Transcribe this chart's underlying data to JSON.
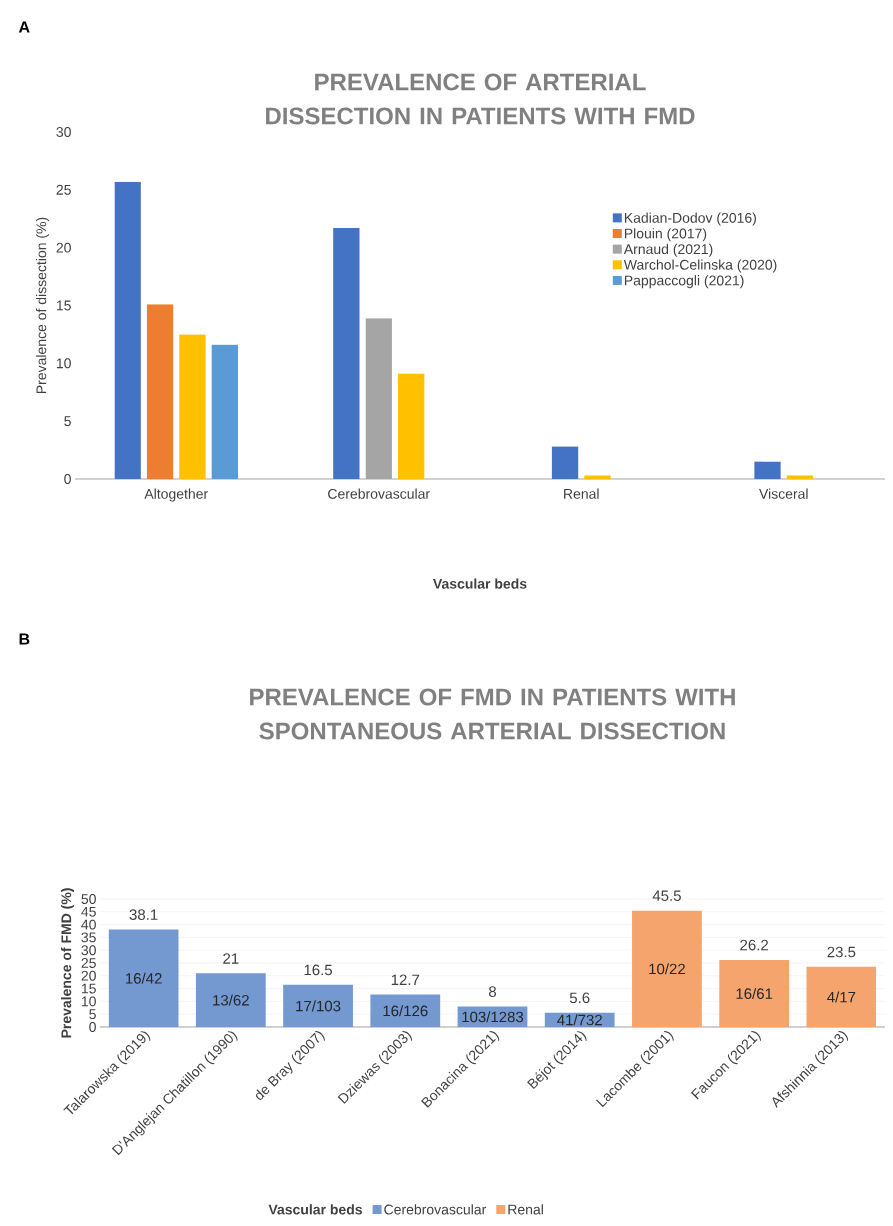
{
  "chart_data": [
    {
      "type": "bar",
      "title": "PREVALENCE OF ARTERIAL DISSECTION IN PATIENTS WITH FMD",
      "xlabel": "Vascular beds",
      "ylabel": "Prevalence of dissection (%)",
      "categories": [
        "Altogether",
        "Cerebrovascular",
        "Renal",
        "Visceral"
      ],
      "series": [
        {
          "name": "Kadian-Dodov (2016)",
          "color": "#4472c4",
          "values": [
            25.7,
            21.7,
            2.8,
            1.5
          ]
        },
        {
          "name": "Plouin (2017)",
          "color": "#ed7d31",
          "values": [
            15.1,
            null,
            null,
            null
          ]
        },
        {
          "name": "Arnaud (2021)",
          "color": "#a5a5a5",
          "values": [
            null,
            13.9,
            null,
            null
          ]
        },
        {
          "name": "Warchol-Celinska (2020)",
          "color": "#ffc000",
          "values": [
            12.5,
            9.1,
            0.3,
            0.3
          ]
        },
        {
          "name": "Pappaccogli (2021)",
          "color": "#5b9bd5",
          "values": [
            11.6,
            null,
            null,
            null
          ]
        }
      ],
      "ylim": [
        0,
        30
      ],
      "yticks": [
        0,
        5,
        10,
        15,
        20,
        25,
        30
      ],
      "legend": "top right",
      "annotations": [
        "A"
      ]
    },
    {
      "type": "bar",
      "title": "PREVALENCE OF FMD IN PATIENTS WITH SPONTANEOUS ARTERIAL DISSECTION",
      "ylabel": "Prevalence of FMD (%)",
      "legend_title": "Vascular beds",
      "categories": [
        "Talarowska (2019)",
        "D'Anglejan Chatillon (1990)",
        "de Bray (2007)",
        "Dziewas (2003)",
        "Bonacina (2021)",
        "Béjot (2014)",
        "Lacombe (2001)",
        "Faucon (2021)",
        "Afshinnia (2013)"
      ],
      "series": [
        {
          "name": "Cerebrovascular",
          "color": "#7399d0",
          "values": [
            38.1,
            21,
            16.5,
            12.7,
            8,
            5.6,
            null,
            null,
            null
          ]
        },
        {
          "name": "Renal",
          "color": "#f4a46c",
          "values": [
            null,
            null,
            null,
            null,
            null,
            null,
            45.5,
            26.2,
            23.5
          ]
        }
      ],
      "ylim": [
        0,
        50
      ],
      "yticks": [
        0,
        5,
        10,
        15,
        20,
        25,
        30,
        35,
        40,
        45,
        50
      ],
      "grid": "y",
      "legend": "bottom",
      "data_labels": true,
      "annotations": [
        "B",
        "16/42",
        "13/62",
        "17/103",
        "16/126",
        "103/1283",
        "41/732",
        "10/22",
        "16/61",
        "4/17"
      ]
    }
  ]
}
